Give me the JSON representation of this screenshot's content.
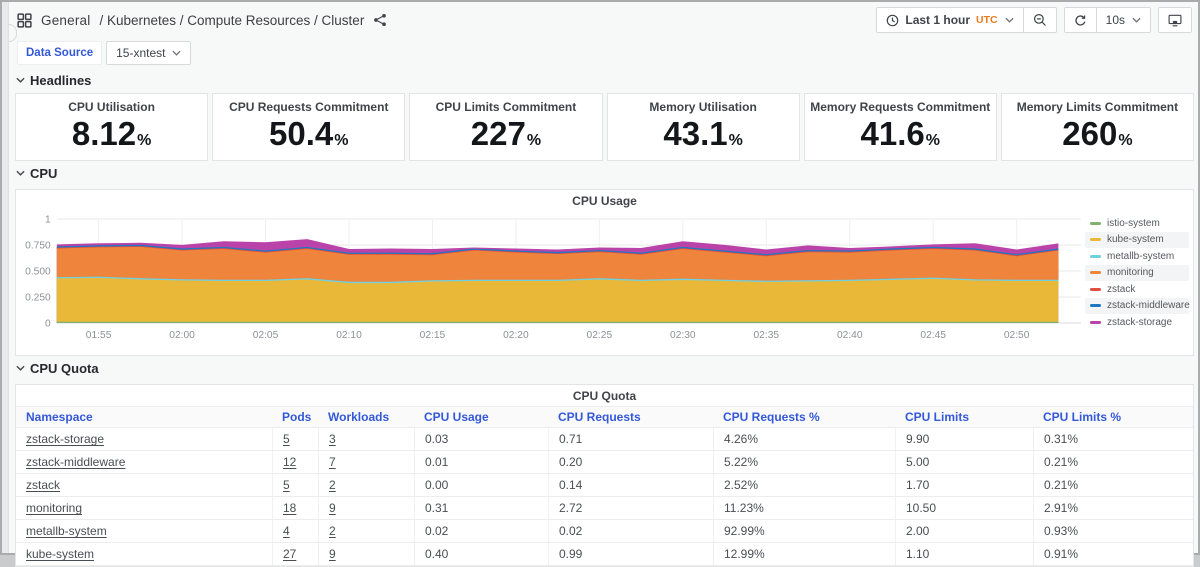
{
  "header": {
    "breadcrumb_root": "General",
    "breadcrumb_path": "/ Kubernetes / Compute Resources / Cluster",
    "time_range": "Last 1 hour",
    "timezone": "UTC",
    "refresh_interval": "10s"
  },
  "submenu": {
    "label": "Data Source",
    "value": "15-xntest"
  },
  "sections": {
    "headlines": "Headlines",
    "cpu": "CPU",
    "cpu_quota": "CPU Quota"
  },
  "headlines": {
    "panels": [
      {
        "title": "CPU Utilisation",
        "value": "8.12",
        "suffix": "%"
      },
      {
        "title": "CPU Requests Commitment",
        "value": "50.4",
        "suffix": "%"
      },
      {
        "title": "CPU Limits Commitment",
        "value": "227",
        "suffix": "%"
      },
      {
        "title": "Memory Utilisation",
        "value": "43.1",
        "suffix": "%"
      },
      {
        "title": "Memory Requests Commitment",
        "value": "41.6",
        "suffix": "%"
      },
      {
        "title": "Memory Limits Commitment",
        "value": "260",
        "suffix": "%"
      }
    ]
  },
  "chart_data": {
    "type": "area",
    "title": "CPU Usage",
    "stacked": true,
    "legend_position": "right",
    "grid": true,
    "ylim": [
      0,
      1
    ],
    "y_ticks": [
      "0",
      "0.250",
      "0.500",
      "0.750",
      "1"
    ],
    "x_ticks": [
      "01:55",
      "02:00",
      "02:05",
      "02:10",
      "02:15",
      "02:20",
      "02:25",
      "02:30",
      "02:35",
      "02:40",
      "02:45",
      "02:50"
    ],
    "points_per_series": 25,
    "series": [
      {
        "name": "istio-system",
        "color": "#7EB26D",
        "values": 0.006
      },
      {
        "name": "kube-system",
        "color": "#EAB839",
        "values": [
          0.419,
          0.424,
          0.409,
          0.399,
          0.394,
          0.394,
          0.409,
          0.374,
          0.374,
          0.389,
          0.394,
          0.394,
          0.394,
          0.409,
          0.394,
          0.404,
          0.394,
          0.384,
          0.389,
          0.394,
          0.404,
          0.414,
          0.399,
          0.394,
          0.394
        ]
      },
      {
        "name": "metallb-system",
        "color": "#6ED0E0",
        "values": 0.01
      },
      {
        "name": "monitoring",
        "color": "#EF843C",
        "values": [
          0.285,
          0.29,
          0.31,
          0.285,
          0.305,
          0.27,
          0.29,
          0.27,
          0.27,
          0.25,
          0.29,
          0.27,
          0.255,
          0.26,
          0.25,
          0.295,
          0.27,
          0.245,
          0.28,
          0.27,
          0.28,
          0.285,
          0.285,
          0.235,
          0.29
        ]
      },
      {
        "name": "zstack",
        "color": "#E24D42",
        "values": 0.003
      },
      {
        "name": "zstack-middleware",
        "color": "#1F78C1",
        "values": 0.008
      },
      {
        "name": "zstack-storage",
        "color": "#BA43A9",
        "values": [
          0.019,
          0.019,
          0.019,
          0.034,
          0.054,
          0.079,
          0.074,
          0.034,
          0.039,
          0.039,
          0.009,
          0.019,
          0.024,
          0.024,
          0.044,
          0.054,
          0.054,
          0.044,
          0.044,
          0.024,
          0.019,
          0.024,
          0.049,
          0.044,
          0.049
        ]
      }
    ]
  },
  "cpu_quota": {
    "title": "CPU Quota",
    "columns": [
      "Namespace",
      "Pods",
      "Workloads",
      "CPU Usage",
      "CPU Requests",
      "CPU Requests %",
      "CPU Limits",
      "CPU Limits %"
    ],
    "rows": [
      [
        "zstack-storage",
        "5",
        "3",
        "0.03",
        "0.71",
        "4.26%",
        "9.90",
        "0.31%"
      ],
      [
        "zstack-middleware",
        "12",
        "7",
        "0.01",
        "0.20",
        "5.22%",
        "5.00",
        "0.21%"
      ],
      [
        "zstack",
        "5",
        "2",
        "0.00",
        "0.14",
        "2.52%",
        "1.70",
        "0.21%"
      ],
      [
        "monitoring",
        "18",
        "9",
        "0.31",
        "2.72",
        "11.23%",
        "10.50",
        "2.91%"
      ],
      [
        "metallb-system",
        "4",
        "2",
        "0.02",
        "0.02",
        "92.99%",
        "2.00",
        "0.93%"
      ],
      [
        "kube-system",
        "27",
        "9",
        "0.40",
        "0.99",
        "12.99%",
        "1.10",
        "0.91%"
      ]
    ]
  },
  "colors": {
    "link_blue": "#3358D8",
    "tz_orange": "#EB7B1C",
    "grid_line": "#E8E9EA",
    "axis_text": "#8E9297"
  }
}
